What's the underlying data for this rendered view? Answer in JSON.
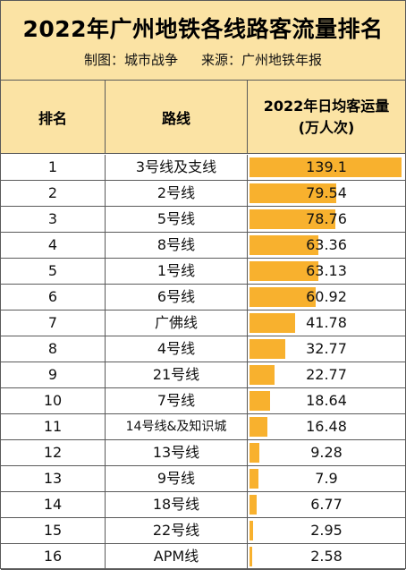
{
  "title": "2022年广州地铁各线路客流量排名",
  "subtitle": {
    "made_by": "制图：城市战争",
    "source": "来源：广州地铁年报"
  },
  "columns": {
    "rank": "排名",
    "line": "路线",
    "value_line1": "2022年日均客运量",
    "value_line2": "(万人次)"
  },
  "colors": {
    "header_bg": "#fbe3a4",
    "bar": "#f8b12e",
    "grid": "#5a5a5a"
  },
  "chart_data": {
    "type": "table",
    "title": "2022年广州地铁各线路客流量排名",
    "value_column": "2022年日均客运量 (万人次)",
    "rows": [
      {
        "rank": "1",
        "line": "3号线及支线",
        "value": 139.1
      },
      {
        "rank": "2",
        "line": "2号线",
        "value": 79.54
      },
      {
        "rank": "3",
        "line": "5号线",
        "value": 78.76
      },
      {
        "rank": "4",
        "line": "8号线",
        "value": 63.36
      },
      {
        "rank": "5",
        "line": "1号线",
        "value": 63.13
      },
      {
        "rank": "6",
        "line": "6号线",
        "value": 60.92
      },
      {
        "rank": "7",
        "line": "广佛线",
        "value": 41.78
      },
      {
        "rank": "8",
        "line": "4号线",
        "value": 32.77
      },
      {
        "rank": "9",
        "line": "21号线",
        "value": 22.77
      },
      {
        "rank": "10",
        "line": "7号线",
        "value": 18.64
      },
      {
        "rank": "11",
        "line": "14号线&及知识城",
        "value": 16.48
      },
      {
        "rank": "12",
        "line": "13号线",
        "value": 9.28
      },
      {
        "rank": "13",
        "line": "9号线",
        "value": 7.9
      },
      {
        "rank": "14",
        "line": "18号线",
        "value": 6.77
      },
      {
        "rank": "15",
        "line": "22号线",
        "value": 2.95
      },
      {
        "rank": "16",
        "line": "APM线",
        "value": 2.58
      }
    ],
    "value_max": 139.1
  }
}
